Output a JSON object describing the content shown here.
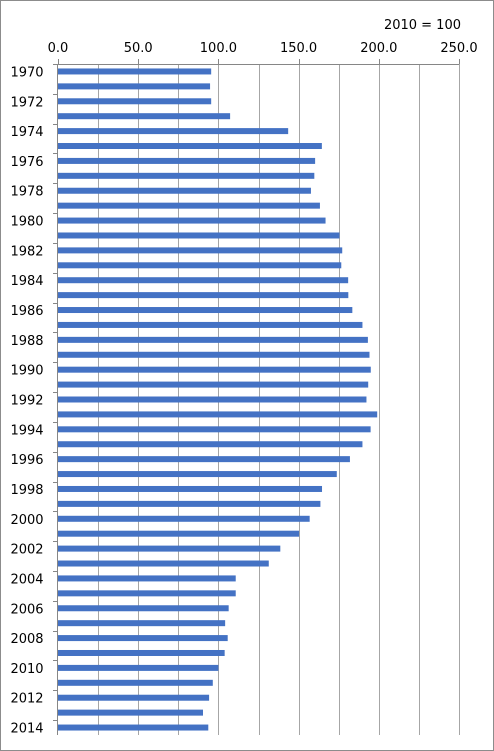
{
  "chart_data": {
    "type": "bar",
    "orientation": "horizontal",
    "title": "",
    "xlabel": "",
    "ylabel": "",
    "note": "2010 = 100",
    "xlim": [
      0,
      250
    ],
    "x_ticks": [
      "0.0",
      "50.0",
      "100.0",
      "150.0",
      "200.0",
      "250.0"
    ],
    "x_tick_values": [
      0,
      50,
      100,
      150,
      200,
      250
    ],
    "grid": true,
    "bar_color": "#4472c4",
    "categories": [
      "1970",
      "1971",
      "1972",
      "1973",
      "1974",
      "1975",
      "1976",
      "1977",
      "1978",
      "1979",
      "1980",
      "1981",
      "1982",
      "1983",
      "1984",
      "1985",
      "1986",
      "1987",
      "1988",
      "1989",
      "1990",
      "1991",
      "1992",
      "1993",
      "1994",
      "1995",
      "1996",
      "1997",
      "1998",
      "1999",
      "2000",
      "2001",
      "2002",
      "2003",
      "2004",
      "2005",
      "2006",
      "2007",
      "2008",
      "2009",
      "2010",
      "2011",
      "2012",
      "2013",
      "2014"
    ],
    "category_labels": [
      "1970",
      "",
      "1972",
      "",
      "1974",
      "",
      "1976",
      "",
      "1978",
      "",
      "1980",
      "",
      "1982",
      "",
      "1984",
      "",
      "1986",
      "",
      "1988",
      "",
      "1990",
      "",
      "1992",
      "",
      "1994",
      "",
      "1996",
      "",
      "1998",
      "",
      "2000",
      "",
      "2002",
      "",
      "2004",
      "",
      "2006",
      "",
      "2008",
      "",
      "2010",
      "",
      "2012",
      "",
      "2014"
    ],
    "values": [
      95.5,
      94.8,
      95.5,
      107.3,
      143.5,
      164.5,
      160.3,
      159.8,
      157.7,
      163.3,
      166.8,
      175.5,
      177.2,
      176.6,
      180.9,
      181.0,
      183.5,
      189.8,
      193.2,
      194.2,
      195.0,
      193.4,
      192.3,
      199.0,
      194.9,
      189.8,
      182.0,
      173.8,
      164.6,
      163.6,
      156.9,
      150.3,
      138.6,
      131.4,
      110.8,
      110.8,
      106.4,
      104.2,
      105.8,
      103.9,
      100.0,
      96.5,
      94.2,
      90.4,
      93.7
    ]
  }
}
